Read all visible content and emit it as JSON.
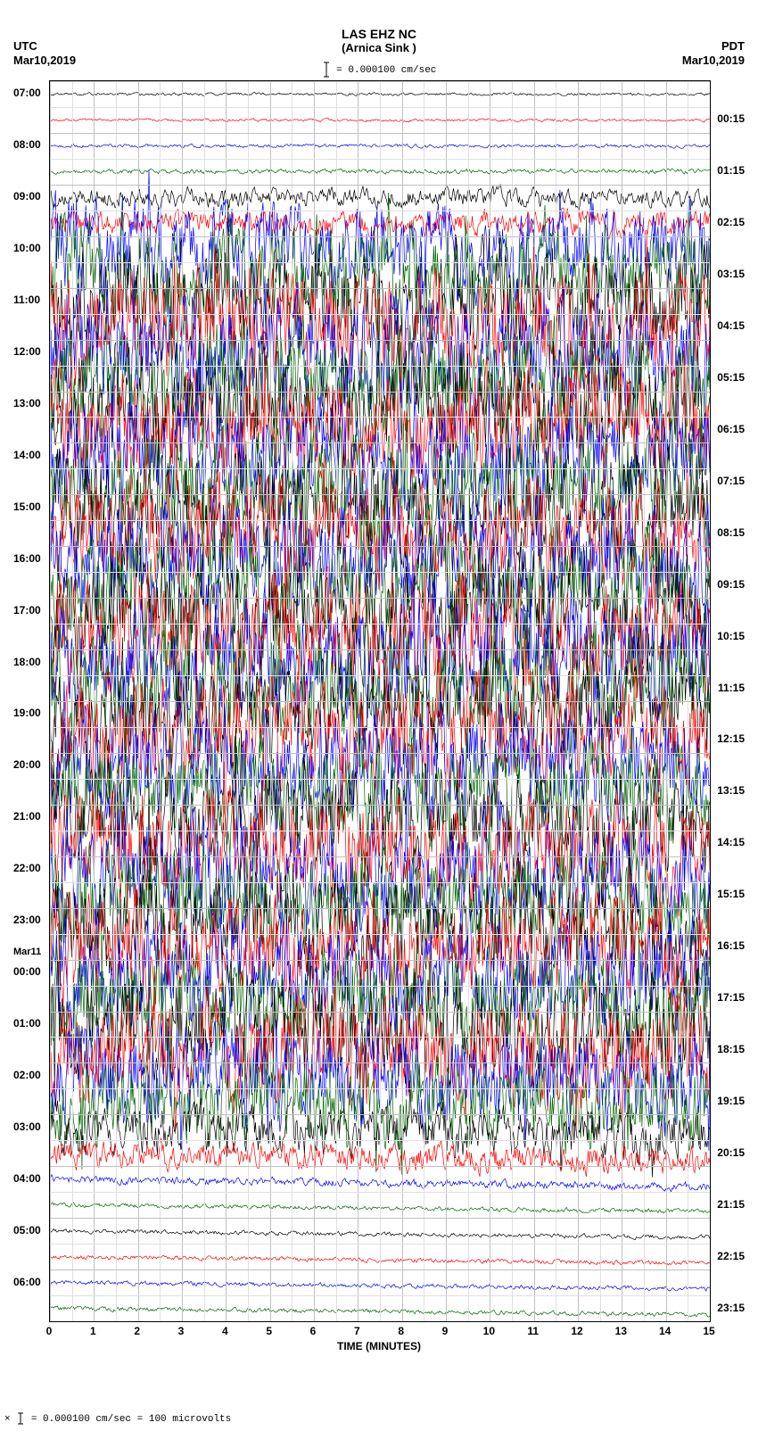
{
  "header": {
    "station": "LAS  EHZ  NC",
    "location": "(Arnica Sink )",
    "scale_text": " = 0.000100 cm/sec"
  },
  "timezones": {
    "left": "UTC",
    "right": "PDT"
  },
  "dates": {
    "left": "Mar10,2019",
    "right": "Mar10,2019",
    "day_break_label": "Mar11"
  },
  "axes": {
    "x_title": "TIME (MINUTES)",
    "x_ticks": [
      0,
      1,
      2,
      3,
      4,
      5,
      6,
      7,
      8,
      9,
      10,
      11,
      12,
      13,
      14,
      15
    ],
    "x_min": 0,
    "x_max": 15,
    "grid_color": "#c0c0c0",
    "plot_border_color": "#000000"
  },
  "rows": {
    "left_labels": [
      "07:00",
      "",
      "08:00",
      "",
      "09:00",
      "",
      "10:00",
      "",
      "11:00",
      "",
      "12:00",
      "",
      "13:00",
      "",
      "14:00",
      "",
      "15:00",
      "",
      "16:00",
      "",
      "17:00",
      "",
      "18:00",
      "",
      "19:00",
      "",
      "20:00",
      "",
      "21:00",
      "",
      "22:00",
      "",
      "23:00",
      "",
      "00:00",
      "",
      "01:00",
      "",
      "02:00",
      "",
      "03:00",
      "",
      "04:00",
      "",
      "05:00",
      "",
      "06:00",
      ""
    ],
    "right_labels": [
      "",
      "00:15",
      "",
      "01:15",
      "",
      "02:15",
      "",
      "03:15",
      "",
      "04:15",
      "",
      "05:15",
      "",
      "06:15",
      "",
      "07:15",
      "",
      "08:15",
      "",
      "09:15",
      "",
      "10:15",
      "",
      "11:15",
      "",
      "12:15",
      "",
      "13:15",
      "",
      "14:15",
      "",
      "15:15",
      "",
      "16:15",
      "",
      "17:15",
      "",
      "18:15",
      "",
      "19:15",
      "",
      "20:15",
      "",
      "21:15",
      "",
      "22:15",
      "",
      "23:15"
    ],
    "row_count": 48,
    "day_break_index": 34,
    "colors": [
      "#000000",
      "#ff0000",
      "#0000ff",
      "#006400"
    ]
  },
  "traces": {
    "comment": "amplitude/drift per row index (0-47). amplitude is peak fraction of row-height; drift is slow vertical offset fraction over 15 min.",
    "amplitude": [
      0.05,
      0.05,
      0.06,
      0.08,
      0.35,
      0.45,
      1.6,
      1.8,
      2.0,
      2.0,
      2.0,
      2.0,
      2.0,
      2.0,
      2.0,
      2.0,
      2.0,
      2.0,
      2.0,
      2.0,
      2.0,
      2.1,
      2.1,
      2.1,
      1.9,
      1.9,
      1.9,
      1.9,
      1.9,
      1.9,
      1.9,
      1.9,
      1.9,
      1.9,
      1.9,
      1.9,
      1.9,
      1.9,
      1.8,
      1.6,
      0.9,
      0.5,
      0.15,
      0.08,
      0.08,
      0.08,
      0.08,
      0.08
    ],
    "drift": [
      0.0,
      0.02,
      0.02,
      -0.02,
      0.0,
      0.0,
      0.0,
      0.0,
      0.0,
      0.0,
      0.0,
      0.0,
      0.0,
      0.0,
      0.0,
      0.0,
      0.0,
      0.0,
      0.0,
      0.0,
      0.0,
      0.0,
      -0.35,
      -0.4,
      -0.45,
      -0.4,
      -0.3,
      -0.25,
      0.2,
      0.25,
      0.3,
      0.3,
      0.3,
      0.25,
      0.25,
      0.2,
      0.2,
      0.2,
      0.15,
      0.15,
      0.3,
      0.3,
      0.3,
      0.25,
      0.25,
      0.25,
      0.25,
      0.25
    ]
  },
  "footer": {
    "text": "  = 0.000100 cm/sec =    100 microvolts",
    "prefix_symbol": "×"
  },
  "style": {
    "background": "#ffffff",
    "header_font": "Arial",
    "header_fontsize_pt": 11,
    "label_fontsize_pt": 9,
    "trace_stroke_width": 0.7
  }
}
